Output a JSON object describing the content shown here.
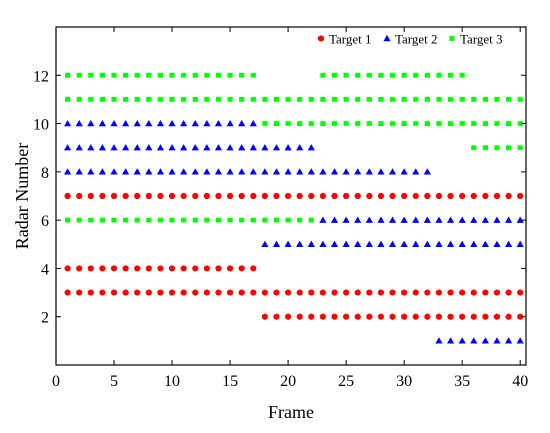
{
  "chart_data": {
    "type": "scatter",
    "title": "",
    "xlabel": "Frame",
    "ylabel": "Radar Number",
    "xlim": [
      0,
      40.5
    ],
    "ylim": [
      0,
      14
    ],
    "xticks": [
      0,
      5,
      10,
      15,
      20,
      25,
      30,
      35,
      40
    ],
    "yticks": [
      2,
      4,
      6,
      8,
      10,
      12
    ],
    "grid": false,
    "legend_position": "top-right",
    "series": [
      {
        "name": "Target 1",
        "marker": "circle",
        "color": "#ff0000",
        "segments": [
          {
            "y": 7,
            "x_start": 1,
            "x_end": 40
          },
          {
            "y": 4,
            "x_start": 1,
            "x_end": 17
          },
          {
            "y": 3,
            "x_start": 1,
            "x_end": 40
          },
          {
            "y": 2,
            "x_start": 18,
            "x_end": 40
          }
        ]
      },
      {
        "name": "Target 2",
        "marker": "triangle",
        "color": "#0000ff",
        "segments": [
          {
            "y": 10,
            "x_start": 1,
            "x_end": 17
          },
          {
            "y": 9,
            "x_start": 1,
            "x_end": 22
          },
          {
            "y": 8,
            "x_start": 1,
            "x_end": 32
          },
          {
            "y": 6,
            "x_start": 23,
            "x_end": 40
          },
          {
            "y": 5,
            "x_start": 18,
            "x_end": 40
          },
          {
            "y": 1,
            "x_start": 33,
            "x_end": 40
          }
        ]
      },
      {
        "name": "Target 3",
        "marker": "square",
        "color": "#00ff00",
        "segments": [
          {
            "y": 12,
            "x_start": 1,
            "x_end": 17
          },
          {
            "y": 12,
            "x_start": 23,
            "x_end": 35
          },
          {
            "y": 11,
            "x_start": 1,
            "x_end": 40
          },
          {
            "y": 10,
            "x_start": 18,
            "x_end": 40
          },
          {
            "y": 9,
            "x_start": 36,
            "x_end": 40
          },
          {
            "y": 6,
            "x_start": 1,
            "x_end": 22
          }
        ]
      }
    ]
  }
}
